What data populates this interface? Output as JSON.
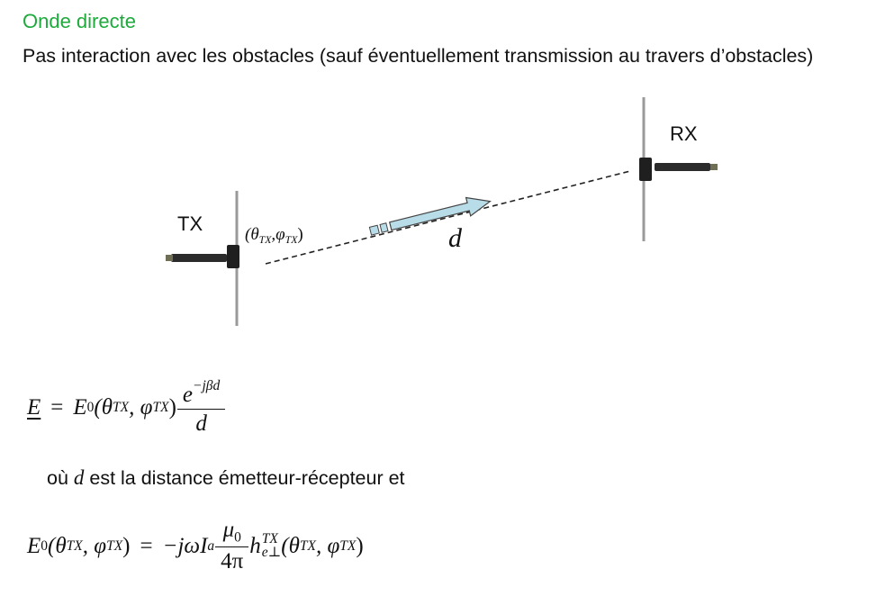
{
  "slide": {
    "title": "Onde directe",
    "intro": "Pas interaction avec les obstacles (sauf éventuellement transmission au travers d’obstacles)"
  },
  "diagram": {
    "tx_label": "TX",
    "rx_label": "RX",
    "angle_label": "(θ",
    "angle_sub1": "TX",
    "angle_sep": ",φ",
    "angle_sub2": "TX",
    "angle_close": ")",
    "distance_label": "d"
  },
  "equations": {
    "eq1": {
      "lhs": "E",
      "eq": "=",
      "func": "E",
      "func_sub": "0",
      "args_open": "(θ",
      "args_sub1": "TX",
      "args_sep": ", φ",
      "args_sub2": "TX",
      "args_close": ")",
      "num_base": "e",
      "num_exp": "−jβd",
      "den": "d"
    },
    "description_pre": "où ",
    "description_var": "d",
    "description_post": " est la distance émetteur-récepteur et",
    "eq2": {
      "func": "E",
      "func_sub": "0",
      "args_open": "(θ",
      "args_sub1": "TX",
      "args_sep": ", φ",
      "args_sub2": "TX",
      "args_close": ")",
      "eq": "=",
      "rhs_pre": "−jωI",
      "rhs_sub": "a",
      "frac_num": "μ",
      "frac_num_sub": "0",
      "frac_den": "4π",
      "h": "h",
      "h_sup": "TX",
      "h_sub": "e⊥",
      "h_args_open": "(θ",
      "h_args_sub1": "TX",
      "h_args_sep": ", φ",
      "h_args_sub2": "TX",
      "h_args_close": ")"
    }
  },
  "colors": {
    "title": "#1eaa3c",
    "arrow_fill": "#b9dde8",
    "antenna": "#2b2b2b"
  }
}
